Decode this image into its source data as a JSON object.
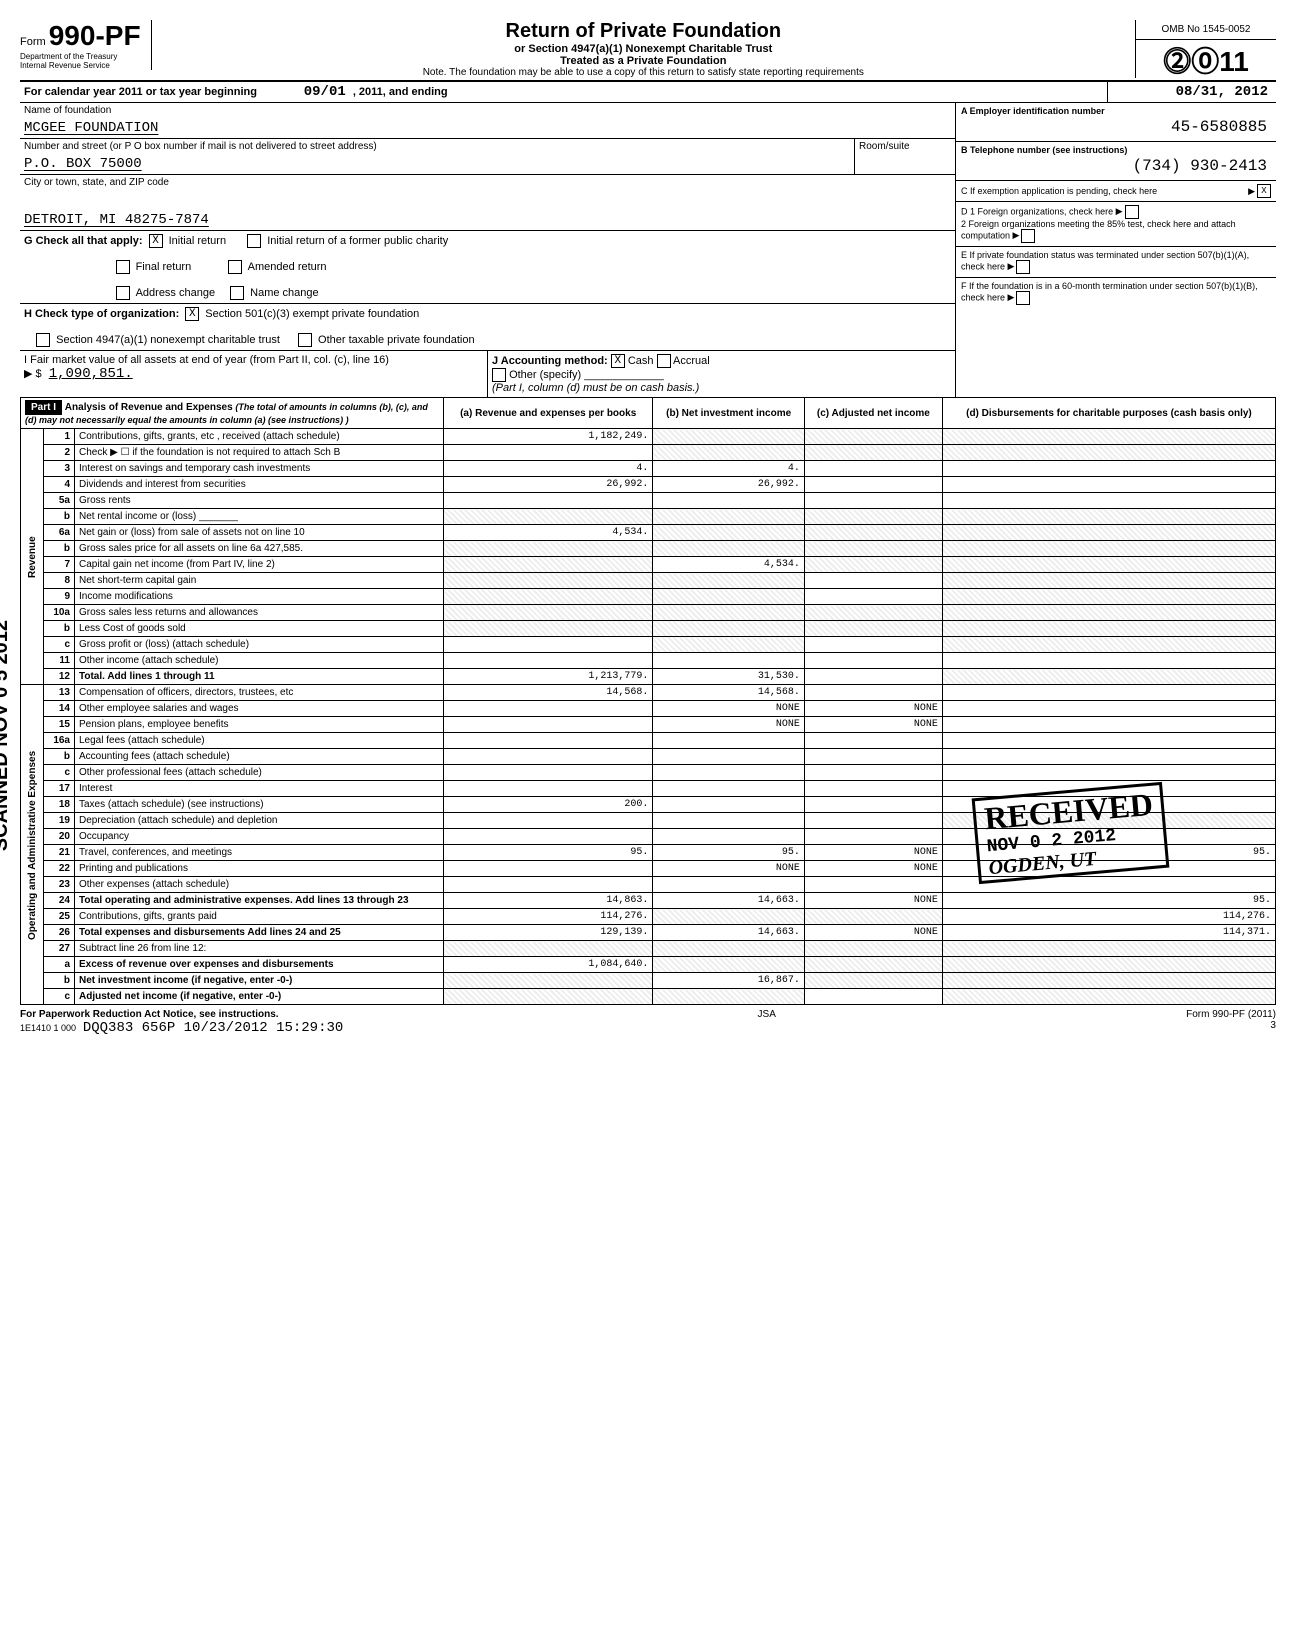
{
  "form": {
    "number": "990-PF",
    "prefix": "Form",
    "dept_line1": "Department of the Treasury",
    "dept_line2": "Internal Revenue Service",
    "title": "Return of Private Foundation",
    "subtitle_line1": "or Section 4947(a)(1) Nonexempt Charitable Trust",
    "subtitle_line2": "Treated as a Private Foundation",
    "note": "Note. The foundation may be able to use a copy of this return to satisfy state reporting requirements",
    "omb": "OMB No 1545-0052",
    "year": "2011"
  },
  "calendar": {
    "prefix": "For calendar year 2011 or tax year beginning",
    "begin": "09/01",
    "mid": ", 2011, and ending",
    "end": "08/31, 2012"
  },
  "identity": {
    "name_label": "Name of foundation",
    "name": "MCGEE FOUNDATION",
    "address_label": "Number and street (or P O box number if mail is not delivered to street address)",
    "address": "P.O. BOX 75000",
    "room_label": "Room/suite",
    "city_label": "City or town, state, and ZIP code",
    "city": "DETROIT, MI 48275-7874",
    "ein_label": "A  Employer identification number",
    "ein": "45-6580885",
    "phone_label": "B  Telephone number (see instructions)",
    "phone": "(734) 930-2413",
    "c_label": "C  If exemption application is pending, check here",
    "c_checked": "X"
  },
  "g": {
    "label": "G  Check all that apply:",
    "initial": "Initial return",
    "initial_x": "X",
    "initial_former": "Initial return of a former public charity",
    "final": "Final return",
    "amended": "Amended return",
    "address_change": "Address change",
    "name_change": "Name change"
  },
  "h": {
    "label": "H  Check type of organization:",
    "opt1": "Section 501(c)(3)  exempt private foundation",
    "opt1_x": "X",
    "opt2": "Section 4947(a)(1) nonexempt charitable trust",
    "opt3": "Other taxable private foundation"
  },
  "i": {
    "label": "I  Fair market value of all assets at end of year (from Part II, col. (c), line 16)",
    "value_prefix": "▶ $",
    "value": "1,090,851."
  },
  "j": {
    "label": "J  Accounting method:",
    "cash": "Cash",
    "cash_x": "X",
    "accrual": "Accrual",
    "other": "Other (specify)",
    "note": "(Part I, column (d) must be on cash basis.)"
  },
  "d": {
    "line1": "D  1  Foreign organizations, check here",
    "line2": "2  Foreign organizations meeting the 85% test, check here and attach computation"
  },
  "e": {
    "label": "E  If private foundation status was terminated under section 507(b)(1)(A), check here"
  },
  "f": {
    "label": "F  If the foundation is in a 60-month termination under section 507(b)(1)(B), check here"
  },
  "part1": {
    "title": "Part I",
    "heading": "Analysis of Revenue and Expenses",
    "heading_note": "(The total of amounts in columns (b), (c), and (d) may not necessarily equal the amounts in column (a) (see instructions) )",
    "col_a": "(a) Revenue and expenses per books",
    "col_b": "(b) Net investment income",
    "col_c": "(c) Adjusted net income",
    "col_d": "(d) Disbursements for charitable purposes (cash basis only)"
  },
  "rows": [
    {
      "n": "1",
      "desc": "Contributions, gifts, grants, etc , received (attach schedule)",
      "a": "1,182,249.",
      "b": "",
      "c": "",
      "d": "",
      "shade_bcd": true
    },
    {
      "n": "2",
      "desc": "Check ▶ ☐  if the foundation is not required to attach Sch B",
      "a": "",
      "b": "",
      "c": "",
      "d": "",
      "shade_bcd": true
    },
    {
      "n": "3",
      "desc": "Interest on savings and temporary cash investments",
      "a": "4.",
      "b": "4.",
      "c": "",
      "d": ""
    },
    {
      "n": "4",
      "desc": "Dividends and interest from securities",
      "a": "26,992.",
      "b": "26,992.",
      "c": "",
      "d": ""
    },
    {
      "n": "5a",
      "desc": "Gross rents",
      "a": "",
      "b": "",
      "c": "",
      "d": ""
    },
    {
      "n": "b",
      "desc": "Net rental income or (loss) _______",
      "a": "",
      "b": "",
      "c": "",
      "d": "",
      "shade_all": true
    },
    {
      "n": "6a",
      "desc": "Net gain or (loss) from sale of assets not on line 10",
      "a": "4,534.",
      "b": "",
      "c": "",
      "d": "",
      "shade_bcd": true
    },
    {
      "n": "b",
      "desc": "Gross sales price for all assets on line 6a        427,585.",
      "a": "",
      "b": "",
      "c": "",
      "d": "",
      "shade_all": true
    },
    {
      "n": "7",
      "desc": "Capital gain net income (from Part IV, line 2)",
      "a": "",
      "b": "4,534.",
      "c": "",
      "d": "",
      "shade_a": true,
      "shade_cd": true
    },
    {
      "n": "8",
      "desc": "Net short-term capital gain",
      "a": "",
      "b": "",
      "c": "",
      "d": "",
      "shade_ab": true,
      "shade_d": true
    },
    {
      "n": "9",
      "desc": "Income modifications",
      "a": "",
      "b": "",
      "c": "",
      "d": "",
      "shade_ab": true,
      "shade_d": true
    },
    {
      "n": "10a",
      "desc": "Gross sales less returns and allowances",
      "a": "",
      "b": "",
      "c": "",
      "d": "",
      "shade_all": true
    },
    {
      "n": "b",
      "desc": "Less Cost of goods sold",
      "a": "",
      "b": "",
      "c": "",
      "d": "",
      "shade_all": true
    },
    {
      "n": "c",
      "desc": "Gross profit or (loss) (attach schedule)",
      "a": "",
      "b": "",
      "c": "",
      "d": "",
      "shade_b": true,
      "shade_d": true
    },
    {
      "n": "11",
      "desc": "Other income (attach schedule)",
      "a": "",
      "b": "",
      "c": "",
      "d": ""
    },
    {
      "n": "12",
      "desc": "Total. Add lines 1 through 11",
      "a": "1,213,779.",
      "b": "31,530.",
      "c": "",
      "d": "",
      "bold": true,
      "shade_d": true
    },
    {
      "n": "13",
      "desc": "Compensation of officers, directors, trustees, etc",
      "a": "14,568.",
      "b": "14,568.",
      "c": "",
      "d": ""
    },
    {
      "n": "14",
      "desc": "Other employee salaries and wages",
      "a": "",
      "b": "NONE",
      "c": "NONE",
      "d": ""
    },
    {
      "n": "15",
      "desc": "Pension plans, employee benefits",
      "a": "",
      "b": "NONE",
      "c": "NONE",
      "d": ""
    },
    {
      "n": "16a",
      "desc": "Legal fees (attach schedule)",
      "a": "",
      "b": "",
      "c": "",
      "d": ""
    },
    {
      "n": "b",
      "desc": "Accounting fees (attach schedule)",
      "a": "",
      "b": "",
      "c": "",
      "d": ""
    },
    {
      "n": "c",
      "desc": "Other professional fees (attach schedule)",
      "a": "",
      "b": "",
      "c": "",
      "d": ""
    },
    {
      "n": "17",
      "desc": "Interest",
      "a": "",
      "b": "",
      "c": "",
      "d": ""
    },
    {
      "n": "18",
      "desc": "Taxes (attach schedule) (see instructions)",
      "a": "200.",
      "b": "",
      "c": "",
      "d": ""
    },
    {
      "n": "19",
      "desc": "Depreciation (attach schedule) and depletion",
      "a": "",
      "b": "",
      "c": "",
      "d": "",
      "shade_d": true
    },
    {
      "n": "20",
      "desc": "Occupancy",
      "a": "",
      "b": "",
      "c": "",
      "d": ""
    },
    {
      "n": "21",
      "desc": "Travel, conferences, and meetings",
      "a": "95.",
      "b": "95.",
      "c": "NONE",
      "d": "95."
    },
    {
      "n": "22",
      "desc": "Printing and publications",
      "a": "",
      "b": "NONE",
      "c": "NONE",
      "d": ""
    },
    {
      "n": "23",
      "desc": "Other expenses (attach schedule)",
      "a": "",
      "b": "",
      "c": "",
      "d": ""
    },
    {
      "n": "24",
      "desc": "Total operating and administrative expenses. Add lines 13 through 23",
      "a": "14,863.",
      "b": "14,663.",
      "c": "NONE",
      "d": "95.",
      "bold": true
    },
    {
      "n": "25",
      "desc": "Contributions, gifts, grants paid",
      "a": "114,276.",
      "b": "",
      "c": "",
      "d": "114,276.",
      "shade_bc": true
    },
    {
      "n": "26",
      "desc": "Total expenses and disbursements  Add lines 24 and 25",
      "a": "129,139.",
      "b": "14,663.",
      "c": "NONE",
      "d": "114,371.",
      "bold": true
    },
    {
      "n": "27",
      "desc": "Subtract line 26 from line 12:",
      "a": "",
      "b": "",
      "c": "",
      "d": "",
      "shade_all": true
    },
    {
      "n": "a",
      "desc": "Excess of revenue over expenses and disbursements",
      "a": "1,084,640.",
      "b": "",
      "c": "",
      "d": "",
      "bold": true,
      "shade_bcd": true
    },
    {
      "n": "b",
      "desc": "Net investment income (if negative, enter -0-)",
      "a": "",
      "b": "16,867.",
      "c": "",
      "d": "",
      "bold": true,
      "shade_a": true,
      "shade_cd": true
    },
    {
      "n": "c",
      "desc": "Adjusted net income (if negative, enter -0-)",
      "a": "",
      "b": "",
      "c": "",
      "d": "",
      "bold": true,
      "shade_ab": true,
      "shade_d": true
    }
  ],
  "side_labels": {
    "scanned": "SCANNED NOV 0 5 2012",
    "revenue": "Revenue",
    "expenses": "Operating and Administrative Expenses"
  },
  "stamp": {
    "received": "RECEIVED",
    "date": "NOV 0 2 2012",
    "org": "OGDEN, UT"
  },
  "footer": {
    "left": "For Paperwork Reduction Act Notice, see instructions.",
    "code": "1E1410 1 000",
    "jsa": "JSA",
    "right": "Form 990-PF (2011)",
    "stamp_line": "DQQ383 656P 10/23/2012 15:29:30",
    "page": "3"
  }
}
